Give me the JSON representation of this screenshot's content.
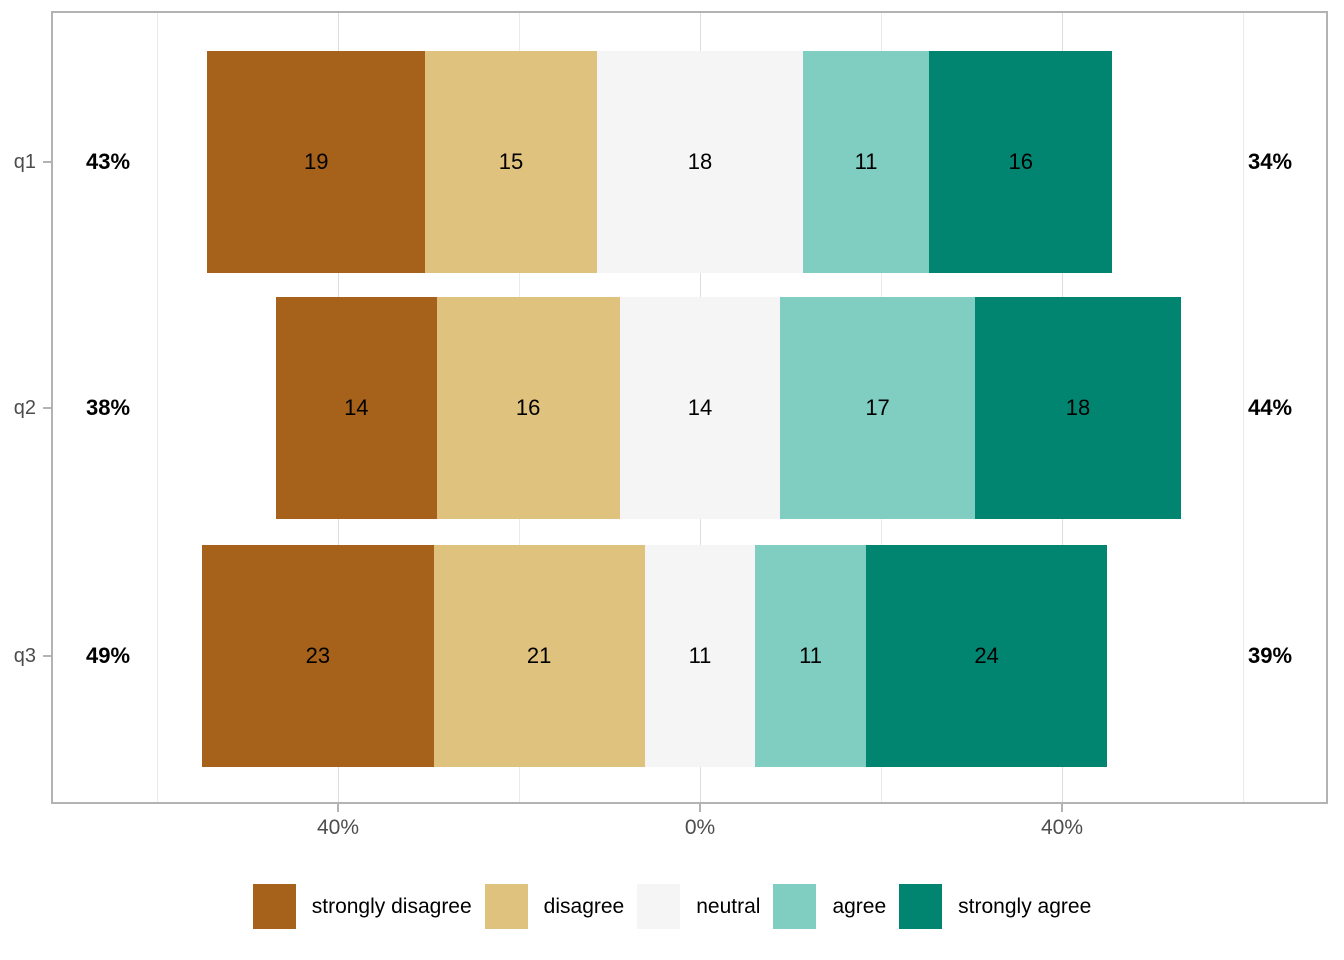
{
  "chart_data": {
    "type": "bar",
    "variant": "diverging-stacked-likert",
    "title": "",
    "categories": [
      "q1",
      "q2",
      "q3"
    ],
    "levels": [
      {
        "name": "strongly disagree",
        "color": "#A6611A"
      },
      {
        "name": "disagree",
        "color": "#DFC27D"
      },
      {
        "name": "neutral",
        "color": "#F5F5F5"
      },
      {
        "name": "agree",
        "color": "#80CDC1"
      },
      {
        "name": "strongly agree",
        "color": "#018571"
      }
    ],
    "rows": [
      {
        "category": "q1",
        "values": [
          19,
          15,
          18,
          11,
          16
        ],
        "left_total": "43%",
        "right_total": "34%"
      },
      {
        "category": "q2",
        "values": [
          14,
          16,
          14,
          17,
          18
        ],
        "left_total": "38%",
        "right_total": "44%"
      },
      {
        "category": "q3",
        "values": [
          23,
          21,
          11,
          11,
          24
        ],
        "left_total": "49%",
        "right_total": "39%"
      }
    ],
    "neutral_split_at_zero": true,
    "x_ticks": [
      {
        "value": -40,
        "label": "40%"
      },
      {
        "value": 0,
        "label": "0%"
      },
      {
        "value": 40,
        "label": "40%"
      }
    ],
    "x_major_gridlines": [
      -40,
      0,
      40
    ],
    "x_minor_gridlines": [
      -60,
      -20,
      20,
      60
    ],
    "xlim": [
      -71.4,
      69.8
    ],
    "grid": true,
    "legend_position": "bottom",
    "theme": {
      "panel_border_color": "#B3B3B3",
      "major_grid_color": "#DDDDDD",
      "minor_grid_color": "#EBEBEB",
      "axis_text_color": "#4D4D4D",
      "tick_color": "#B3B3B3",
      "value_label_color": "#000000",
      "total_label_color": "#000000",
      "background": "#FFFFFF"
    }
  }
}
